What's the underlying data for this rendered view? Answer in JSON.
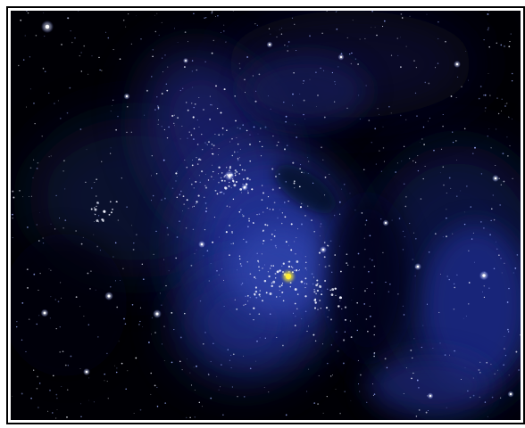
{
  "image": {
    "subject": "nebula-star-field",
    "colors": {
      "space": "#000005",
      "nebula_core": "#2a3a9a",
      "nebula_mid": "#1a2470",
      "nebula_faint": "#0e1440",
      "star_white": "#f2f4ff",
      "star_blue": "#9fb0ff",
      "highlight_star": "#ffee33",
      "border": "#000000"
    }
  }
}
